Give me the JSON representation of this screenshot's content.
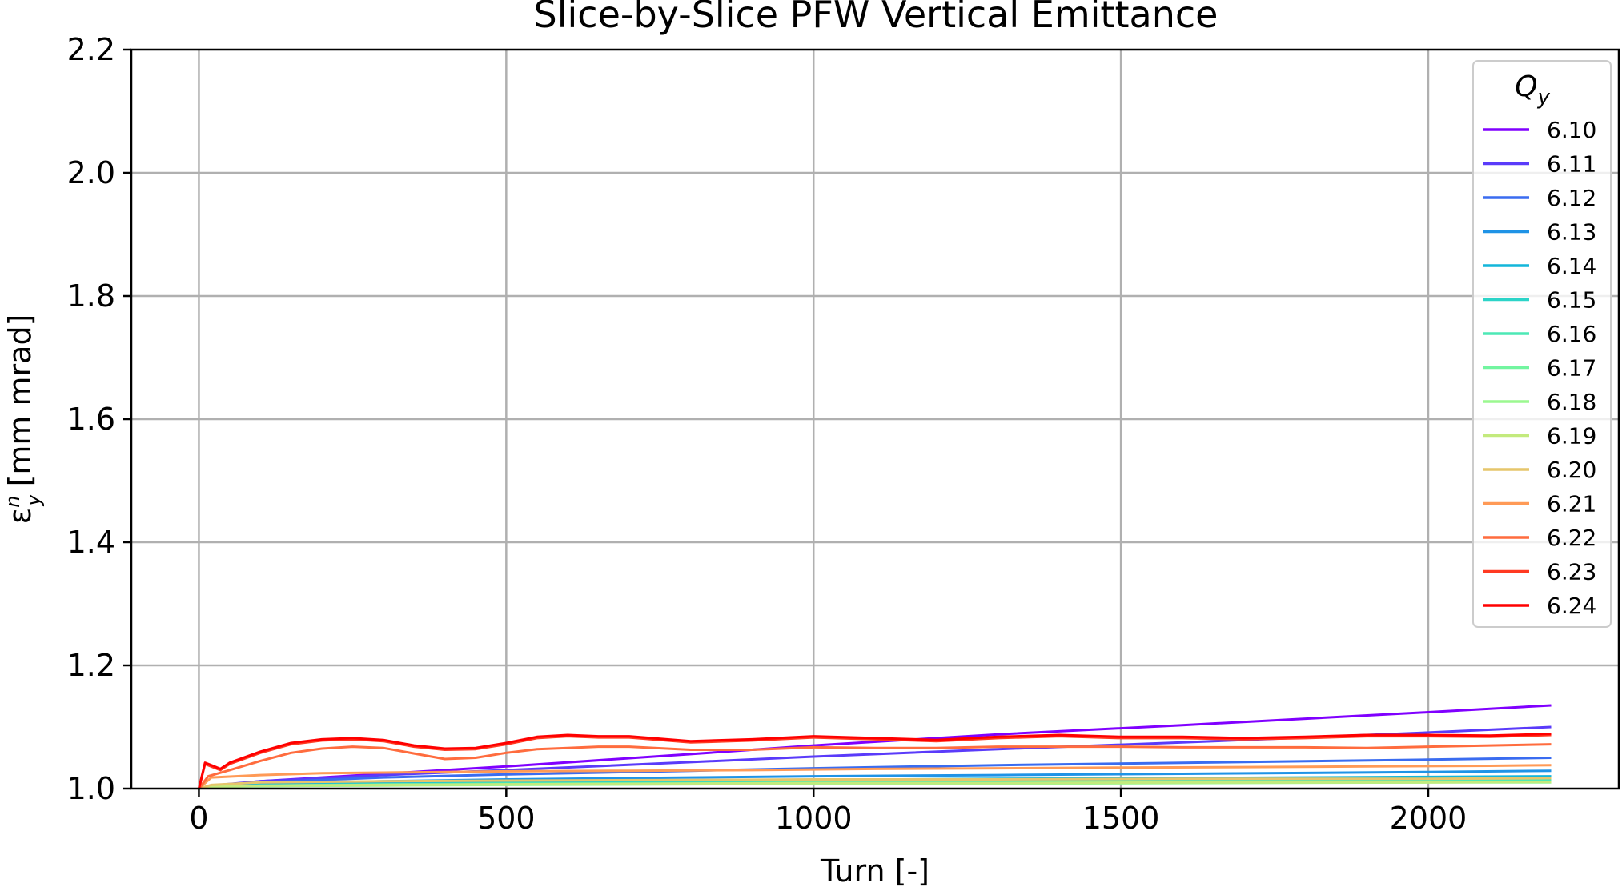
{
  "chart_data": {
    "type": "line",
    "title": "Slice-by-Slice PFW Vertical Emittance",
    "xlabel": "Turn [-]",
    "ylabel_main": "ε",
    "ylabel_sub": "y",
    "ylabel_sup": "n",
    "ylabel_units": "[mm mrad]",
    "xlim": [
      -110,
      2310
    ],
    "ylim": [
      1.0,
      2.2
    ],
    "xticks": [
      0,
      500,
      1000,
      1500,
      2000
    ],
    "xtick_labels": [
      "0",
      "500",
      "1000",
      "1500",
      "2000"
    ],
    "yticks": [
      1.0,
      1.2,
      1.4,
      1.6,
      1.8,
      2.0,
      2.2
    ],
    "ytick_labels": [
      "1.0",
      "1.2",
      "1.4",
      "1.6",
      "1.8",
      "2.0",
      "2.2"
    ],
    "grid": true,
    "legend": {
      "title_main": "Q",
      "title_sub": "y",
      "position": "upper-right"
    },
    "series": [
      {
        "name": "6.10",
        "color": "#8000ff",
        "x": [
          0,
          20,
          100,
          300,
          500,
          800,
          1000,
          1300,
          1600,
          2000,
          2200
        ],
        "y": [
          1.0,
          1.004,
          1.012,
          1.024,
          1.036,
          1.056,
          1.07,
          1.088,
          1.103,
          1.124,
          1.135
        ]
      },
      {
        "name": "6.11",
        "color": "#5a3bfa",
        "x": [
          0,
          20,
          100,
          300,
          500,
          800,
          1000,
          1300,
          1600,
          2000,
          2200
        ],
        "y": [
          1.0,
          1.005,
          1.012,
          1.022,
          1.03,
          1.043,
          1.052,
          1.064,
          1.075,
          1.091,
          1.1
        ]
      },
      {
        "name": "6.12",
        "color": "#3a6cf0",
        "x": [
          0,
          20,
          100,
          300,
          500,
          800,
          1000,
          1300,
          1600,
          2000,
          2200
        ],
        "y": [
          1.0,
          1.005,
          1.01,
          1.018,
          1.023,
          1.029,
          1.033,
          1.038,
          1.042,
          1.047,
          1.05
        ]
      },
      {
        "name": "6.13",
        "color": "#1f93e6",
        "x": [
          0,
          20,
          100,
          300,
          500,
          800,
          1000,
          1300,
          1600,
          2000,
          2200
        ],
        "y": [
          1.0,
          1.004,
          1.008,
          1.012,
          1.015,
          1.018,
          1.02,
          1.022,
          1.024,
          1.027,
          1.029
        ]
      },
      {
        "name": "6.14",
        "color": "#13b6da",
        "x": [
          0,
          20,
          100,
          300,
          500,
          800,
          1000,
          1300,
          1600,
          2000,
          2200
        ],
        "y": [
          1.0,
          1.003,
          1.006,
          1.009,
          1.011,
          1.013,
          1.014,
          1.016,
          1.017,
          1.019,
          1.02
        ]
      },
      {
        "name": "6.15",
        "color": "#2cd4c8",
        "x": [
          0,
          20,
          100,
          300,
          500,
          800,
          1000,
          1300,
          1600,
          2000,
          2200
        ],
        "y": [
          1.0,
          1.003,
          1.005,
          1.007,
          1.009,
          1.01,
          1.011,
          1.012,
          1.013,
          1.014,
          1.015
        ]
      },
      {
        "name": "6.16",
        "color": "#4de8b5",
        "x": [
          0,
          20,
          100,
          300,
          500,
          800,
          1000,
          1300,
          1600,
          2000,
          2200
        ],
        "y": [
          1.0,
          1.003,
          1.005,
          1.007,
          1.008,
          1.009,
          1.01,
          1.011,
          1.012,
          1.013,
          1.013
        ]
      },
      {
        "name": "6.17",
        "color": "#72f5a0",
        "x": [
          0,
          20,
          100,
          300,
          500,
          800,
          1000,
          1300,
          1600,
          2000,
          2200
        ],
        "y": [
          1.0,
          1.003,
          1.004,
          1.006,
          1.007,
          1.008,
          1.009,
          1.009,
          1.01,
          1.011,
          1.011
        ]
      },
      {
        "name": "6.18",
        "color": "#9cf890",
        "x": [
          0,
          20,
          100,
          300,
          500,
          800,
          1000,
          1300,
          1600,
          2000,
          2200
        ],
        "y": [
          1.0,
          1.003,
          1.004,
          1.005,
          1.006,
          1.007,
          1.008,
          1.008,
          1.009,
          1.01,
          1.01
        ]
      },
      {
        "name": "6.19",
        "color": "#c3ea7d",
        "x": [
          0,
          20,
          100,
          300,
          500,
          800,
          1000,
          1300,
          1600,
          2000,
          2200
        ],
        "y": [
          1.0,
          1.003,
          1.005,
          1.006,
          1.007,
          1.008,
          1.009,
          1.009,
          1.01,
          1.01,
          1.011
        ]
      },
      {
        "name": "6.20",
        "color": "#e6c66b",
        "x": [
          0,
          20,
          100,
          300,
          500,
          800,
          1000,
          1300,
          1600,
          2000,
          2200
        ],
        "y": [
          1.0,
          1.006,
          1.01,
          1.012,
          1.013,
          1.014,
          1.015,
          1.015,
          1.016,
          1.016,
          1.017
        ]
      },
      {
        "name": "6.21",
        "color": "#ff9a56",
        "x": [
          0,
          20,
          100,
          200,
          300,
          400,
          500,
          700,
          900,
          1100,
          1300,
          1500,
          1700,
          1900,
          2100,
          2200
        ],
        "y": [
          1.0,
          1.018,
          1.022,
          1.025,
          1.026,
          1.027,
          1.028,
          1.029,
          1.03,
          1.032,
          1.033,
          1.034,
          1.035,
          1.036,
          1.037,
          1.038
        ]
      },
      {
        "name": "6.22",
        "color": "#ff6c3e",
        "x": [
          0,
          15,
          50,
          100,
          150,
          200,
          250,
          300,
          350,
          400,
          450,
          500,
          550,
          600,
          650,
          700,
          800,
          900,
          1000,
          1100,
          1200,
          1300,
          1400,
          1500,
          1600,
          1700,
          1800,
          1900,
          2000,
          2100,
          2200
        ],
        "y": [
          1.0,
          1.02,
          1.03,
          1.045,
          1.058,
          1.065,
          1.068,
          1.066,
          1.057,
          1.048,
          1.05,
          1.058,
          1.064,
          1.066,
          1.068,
          1.068,
          1.063,
          1.063,
          1.067,
          1.066,
          1.066,
          1.068,
          1.068,
          1.068,
          1.067,
          1.067,
          1.067,
          1.066,
          1.068,
          1.07,
          1.072
        ]
      },
      {
        "name": "6.23",
        "color": "#ff3a22",
        "x": [
          0,
          10,
          20,
          35,
          50,
          100,
          150,
          200,
          250,
          300,
          350,
          400,
          450,
          500,
          550,
          600,
          650,
          700,
          800,
          900,
          1000,
          1100,
          1200,
          1300,
          1400,
          1500,
          1600,
          1700,
          1800,
          1900,
          2000,
          2100,
          2200
        ],
        "y": [
          1.0,
          1.04,
          1.036,
          1.03,
          1.04,
          1.058,
          1.072,
          1.078,
          1.08,
          1.077,
          1.068,
          1.063,
          1.064,
          1.072,
          1.082,
          1.085,
          1.083,
          1.083,
          1.075,
          1.078,
          1.083,
          1.08,
          1.077,
          1.082,
          1.085,
          1.082,
          1.082,
          1.08,
          1.082,
          1.085,
          1.085,
          1.084,
          1.087
        ]
      },
      {
        "name": "6.24",
        "color": "#ff0000",
        "x": [
          0,
          10,
          20,
          35,
          50,
          100,
          150,
          200,
          250,
          300,
          350,
          400,
          450,
          500,
          550,
          600,
          650,
          700,
          800,
          900,
          1000,
          1100,
          1200,
          1300,
          1400,
          1500,
          1600,
          1700,
          1800,
          1900,
          2000,
          2100,
          2200
        ],
        "y": [
          1.0,
          1.042,
          1.038,
          1.032,
          1.042,
          1.06,
          1.074,
          1.08,
          1.082,
          1.079,
          1.07,
          1.065,
          1.066,
          1.074,
          1.084,
          1.087,
          1.085,
          1.085,
          1.077,
          1.08,
          1.085,
          1.082,
          1.079,
          1.084,
          1.087,
          1.084,
          1.084,
          1.082,
          1.084,
          1.087,
          1.087,
          1.086,
          1.089
        ]
      }
    ]
  }
}
